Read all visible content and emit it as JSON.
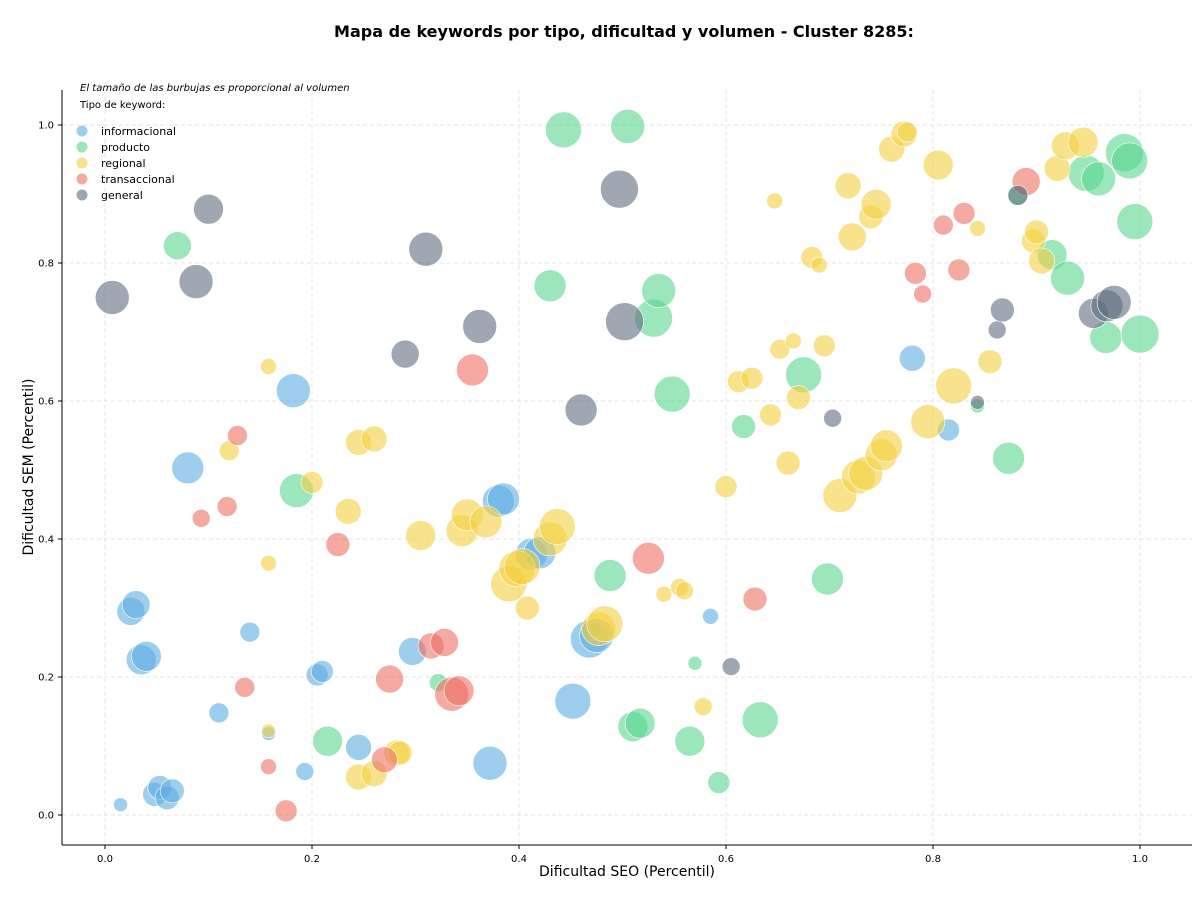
{
  "chart_data": {
    "type": "scatter",
    "title": "Mapa de keywords por tipo, dificultad y volumen - Cluster 8285:",
    "xlabel": "Dificultad SEO (Percentil)",
    "ylabel": "Dificultad SEM (Percentil)",
    "note": "El tamaño de las burbujas es proporcional al volumen",
    "legend_title": "Tipo de keyword:",
    "legend_position": "top-left",
    "grid": true,
    "xlim": [
      -0.04,
      1.05
    ],
    "ylim": [
      -0.045,
      1.05
    ],
    "xticks": [
      "0.0",
      "0.2",
      "0.4",
      "0.6",
      "0.8",
      "1.0"
    ],
    "yticks": [
      "0.0",
      "0.2",
      "0.4",
      "0.6",
      "0.8",
      "1.0"
    ],
    "series": [
      {
        "name": "informacional",
        "color": "#5DADE2",
        "points": [
          {
            "x": 0.015,
            "y": 0.015,
            "r": 7
          },
          {
            "x": 0.025,
            "y": 0.295,
            "r": 14
          },
          {
            "x": 0.03,
            "y": 0.305,
            "r": 14
          },
          {
            "x": 0.035,
            "y": 0.225,
            "r": 15
          },
          {
            "x": 0.04,
            "y": 0.23,
            "r": 15
          },
          {
            "x": 0.048,
            "y": 0.03,
            "r": 12
          },
          {
            "x": 0.053,
            "y": 0.04,
            "r": 12
          },
          {
            "x": 0.06,
            "y": 0.025,
            "r": 12
          },
          {
            "x": 0.065,
            "y": 0.035,
            "r": 12
          },
          {
            "x": 0.08,
            "y": 0.503,
            "r": 16
          },
          {
            "x": 0.11,
            "y": 0.148,
            "r": 10
          },
          {
            "x": 0.14,
            "y": 0.265,
            "r": 10
          },
          {
            "x": 0.158,
            "y": 0.118,
            "r": 7
          },
          {
            "x": 0.182,
            "y": 0.615,
            "r": 17
          },
          {
            "x": 0.193,
            "y": 0.063,
            "r": 9
          },
          {
            "x": 0.205,
            "y": 0.203,
            "r": 11
          },
          {
            "x": 0.21,
            "y": 0.208,
            "r": 11
          },
          {
            "x": 0.245,
            "y": 0.098,
            "r": 13
          },
          {
            "x": 0.297,
            "y": 0.237,
            "r": 14
          },
          {
            "x": 0.372,
            "y": 0.075,
            "r": 17
          },
          {
            "x": 0.38,
            "y": 0.455,
            "r": 16
          },
          {
            "x": 0.385,
            "y": 0.458,
            "r": 16
          },
          {
            "x": 0.412,
            "y": 0.378,
            "r": 16
          },
          {
            "x": 0.42,
            "y": 0.38,
            "r": 16
          },
          {
            "x": 0.452,
            "y": 0.165,
            "r": 18
          },
          {
            "x": 0.468,
            "y": 0.255,
            "r": 19
          },
          {
            "x": 0.475,
            "y": 0.26,
            "r": 17
          },
          {
            "x": 0.585,
            "y": 0.288,
            "r": 8
          },
          {
            "x": 0.78,
            "y": 0.662,
            "r": 13
          },
          {
            "x": 0.815,
            "y": 0.558,
            "r": 11
          }
        ]
      },
      {
        "name": "producto",
        "color": "#58D68D",
        "points": [
          {
            "x": 0.07,
            "y": 0.825,
            "r": 14
          },
          {
            "x": 0.185,
            "y": 0.47,
            "r": 17
          },
          {
            "x": 0.215,
            "y": 0.107,
            "r": 15
          },
          {
            "x": 0.322,
            "y": 0.192,
            "r": 9
          },
          {
            "x": 0.43,
            "y": 0.767,
            "r": 16
          },
          {
            "x": 0.443,
            "y": 0.993,
            "r": 18
          },
          {
            "x": 0.488,
            "y": 0.347,
            "r": 16
          },
          {
            "x": 0.505,
            "y": 0.998,
            "r": 17
          },
          {
            "x": 0.51,
            "y": 0.128,
            "r": 15
          },
          {
            "x": 0.517,
            "y": 0.133,
            "r": 15
          },
          {
            "x": 0.53,
            "y": 0.72,
            "r": 19
          },
          {
            "x": 0.535,
            "y": 0.76,
            "r": 17
          },
          {
            "x": 0.548,
            "y": 0.61,
            "r": 18
          },
          {
            "x": 0.565,
            "y": 0.107,
            "r": 15
          },
          {
            "x": 0.57,
            "y": 0.22,
            "r": 7
          },
          {
            "x": 0.593,
            "y": 0.047,
            "r": 11
          },
          {
            "x": 0.617,
            "y": 0.563,
            "r": 12
          },
          {
            "x": 0.633,
            "y": 0.138,
            "r": 18
          },
          {
            "x": 0.675,
            "y": 0.638,
            "r": 18
          },
          {
            "x": 0.698,
            "y": 0.342,
            "r": 16
          },
          {
            "x": 0.873,
            "y": 0.517,
            "r": 16
          },
          {
            "x": 0.882,
            "y": 0.898,
            "r": 10
          },
          {
            "x": 0.915,
            "y": 0.812,
            "r": 15
          },
          {
            "x": 0.93,
            "y": 0.778,
            "r": 17
          },
          {
            "x": 0.948,
            "y": 0.93,
            "r": 18
          },
          {
            "x": 0.96,
            "y": 0.922,
            "r": 17
          },
          {
            "x": 0.967,
            "y": 0.692,
            "r": 16
          },
          {
            "x": 0.985,
            "y": 0.96,
            "r": 19
          },
          {
            "x": 0.99,
            "y": 0.948,
            "r": 18
          },
          {
            "x": 0.995,
            "y": 0.86,
            "r": 18
          },
          {
            "x": 1.0,
            "y": 0.697,
            "r": 19
          },
          {
            "x": 0.843,
            "y": 0.593,
            "r": 7
          }
        ]
      },
      {
        "name": "regional",
        "color": "#F4D03F",
        "points": [
          {
            "x": 0.12,
            "y": 0.528,
            "r": 10
          },
          {
            "x": 0.158,
            "y": 0.65,
            "r": 8
          },
          {
            "x": 0.158,
            "y": 0.365,
            "r": 8
          },
          {
            "x": 0.158,
            "y": 0.122,
            "r": 7
          },
          {
            "x": 0.2,
            "y": 0.482,
            "r": 11
          },
          {
            "x": 0.235,
            "y": 0.44,
            "r": 13
          },
          {
            "x": 0.245,
            "y": 0.055,
            "r": 13
          },
          {
            "x": 0.245,
            "y": 0.54,
            "r": 13
          },
          {
            "x": 0.26,
            "y": 0.545,
            "r": 13
          },
          {
            "x": 0.26,
            "y": 0.06,
            "r": 13
          },
          {
            "x": 0.282,
            "y": 0.09,
            "r": 13
          },
          {
            "x": 0.285,
            "y": 0.09,
            "r": 12
          },
          {
            "x": 0.305,
            "y": 0.405,
            "r": 15
          },
          {
            "x": 0.345,
            "y": 0.412,
            "r": 16
          },
          {
            "x": 0.35,
            "y": 0.435,
            "r": 16
          },
          {
            "x": 0.368,
            "y": 0.425,
            "r": 16
          },
          {
            "x": 0.39,
            "y": 0.335,
            "r": 18
          },
          {
            "x": 0.398,
            "y": 0.357,
            "r": 18
          },
          {
            "x": 0.403,
            "y": 0.36,
            "r": 18
          },
          {
            "x": 0.408,
            "y": 0.3,
            "r": 12
          },
          {
            "x": 0.43,
            "y": 0.4,
            "r": 17
          },
          {
            "x": 0.437,
            "y": 0.418,
            "r": 18
          },
          {
            "x": 0.477,
            "y": 0.27,
            "r": 17
          },
          {
            "x": 0.483,
            "y": 0.277,
            "r": 18
          },
          {
            "x": 0.54,
            "y": 0.32,
            "r": 8
          },
          {
            "x": 0.555,
            "y": 0.33,
            "r": 9
          },
          {
            "x": 0.56,
            "y": 0.325,
            "r": 9
          },
          {
            "x": 0.578,
            "y": 0.157,
            "r": 9
          },
          {
            "x": 0.6,
            "y": 0.476,
            "r": 11
          },
          {
            "x": 0.612,
            "y": 0.628,
            "r": 11
          },
          {
            "x": 0.625,
            "y": 0.633,
            "r": 11
          },
          {
            "x": 0.643,
            "y": 0.58,
            "r": 11
          },
          {
            "x": 0.647,
            "y": 0.89,
            "r": 8
          },
          {
            "x": 0.652,
            "y": 0.675,
            "r": 10
          },
          {
            "x": 0.66,
            "y": 0.51,
            "r": 12
          },
          {
            "x": 0.665,
            "y": 0.687,
            "r": 8
          },
          {
            "x": 0.67,
            "y": 0.605,
            "r": 12
          },
          {
            "x": 0.683,
            "y": 0.808,
            "r": 11
          },
          {
            "x": 0.69,
            "y": 0.797,
            "r": 8
          },
          {
            "x": 0.695,
            "y": 0.68,
            "r": 11
          },
          {
            "x": 0.71,
            "y": 0.463,
            "r": 17
          },
          {
            "x": 0.718,
            "y": 0.912,
            "r": 13
          },
          {
            "x": 0.722,
            "y": 0.838,
            "r": 14
          },
          {
            "x": 0.728,
            "y": 0.49,
            "r": 17
          },
          {
            "x": 0.735,
            "y": 0.495,
            "r": 17
          },
          {
            "x": 0.74,
            "y": 0.867,
            "r": 12
          },
          {
            "x": 0.745,
            "y": 0.885,
            "r": 15
          },
          {
            "x": 0.75,
            "y": 0.522,
            "r": 16
          },
          {
            "x": 0.755,
            "y": 0.535,
            "r": 16
          },
          {
            "x": 0.76,
            "y": 0.965,
            "r": 13
          },
          {
            "x": 0.772,
            "y": 0.987,
            "r": 13
          },
          {
            "x": 0.775,
            "y": 0.99,
            "r": 10
          },
          {
            "x": 0.795,
            "y": 0.57,
            "r": 17
          },
          {
            "x": 0.805,
            "y": 0.942,
            "r": 15
          },
          {
            "x": 0.82,
            "y": 0.622,
            "r": 18
          },
          {
            "x": 0.843,
            "y": 0.85,
            "r": 8
          },
          {
            "x": 0.855,
            "y": 0.657,
            "r": 12
          },
          {
            "x": 0.897,
            "y": 0.832,
            "r": 12
          },
          {
            "x": 0.9,
            "y": 0.845,
            "r": 12
          },
          {
            "x": 0.905,
            "y": 0.803,
            "r": 13
          },
          {
            "x": 0.92,
            "y": 0.937,
            "r": 13
          },
          {
            "x": 0.928,
            "y": 0.97,
            "r": 14
          },
          {
            "x": 0.945,
            "y": 0.975,
            "r": 15
          }
        ]
      },
      {
        "name": "transaccional",
        "color": "#EC7063",
        "points": [
          {
            "x": 0.093,
            "y": 0.43,
            "r": 9
          },
          {
            "x": 0.118,
            "y": 0.447,
            "r": 10
          },
          {
            "x": 0.128,
            "y": 0.55,
            "r": 10
          },
          {
            "x": 0.135,
            "y": 0.185,
            "r": 10
          },
          {
            "x": 0.158,
            "y": 0.07,
            "r": 8
          },
          {
            "x": 0.175,
            "y": 0.006,
            "r": 11
          },
          {
            "x": 0.225,
            "y": 0.392,
            "r": 12
          },
          {
            "x": 0.27,
            "y": 0.08,
            "r": 13
          },
          {
            "x": 0.275,
            "y": 0.197,
            "r": 14
          },
          {
            "x": 0.315,
            "y": 0.245,
            "r": 13
          },
          {
            "x": 0.328,
            "y": 0.25,
            "r": 14
          },
          {
            "x": 0.335,
            "y": 0.175,
            "r": 17
          },
          {
            "x": 0.342,
            "y": 0.18,
            "r": 15
          },
          {
            "x": 0.355,
            "y": 0.645,
            "r": 16
          },
          {
            "x": 0.525,
            "y": 0.372,
            "r": 16
          },
          {
            "x": 0.628,
            "y": 0.313,
            "r": 12
          },
          {
            "x": 0.783,
            "y": 0.785,
            "r": 11
          },
          {
            "x": 0.79,
            "y": 0.755,
            "r": 9
          },
          {
            "x": 0.81,
            "y": 0.855,
            "r": 10
          },
          {
            "x": 0.825,
            "y": 0.79,
            "r": 11
          },
          {
            "x": 0.83,
            "y": 0.872,
            "r": 11
          },
          {
            "x": 0.89,
            "y": 0.918,
            "r": 14
          }
        ]
      },
      {
        "name": "general",
        "color": "#5D6D7E",
        "points": [
          {
            "x": 0.007,
            "y": 0.75,
            "r": 17
          },
          {
            "x": 0.088,
            "y": 0.773,
            "r": 17
          },
          {
            "x": 0.1,
            "y": 0.878,
            "r": 15
          },
          {
            "x": 0.29,
            "y": 0.668,
            "r": 14
          },
          {
            "x": 0.31,
            "y": 0.82,
            "r": 17
          },
          {
            "x": 0.362,
            "y": 0.708,
            "r": 17
          },
          {
            "x": 0.46,
            "y": 0.587,
            "r": 16
          },
          {
            "x": 0.497,
            "y": 0.907,
            "r": 19
          },
          {
            "x": 0.502,
            "y": 0.715,
            "r": 19
          },
          {
            "x": 0.605,
            "y": 0.215,
            "r": 9
          },
          {
            "x": 0.703,
            "y": 0.575,
            "r": 9
          },
          {
            "x": 0.843,
            "y": 0.598,
            "r": 7
          },
          {
            "x": 0.862,
            "y": 0.703,
            "r": 9
          },
          {
            "x": 0.867,
            "y": 0.732,
            "r": 12
          },
          {
            "x": 0.882,
            "y": 0.898,
            "r": 10
          },
          {
            "x": 0.955,
            "y": 0.727,
            "r": 15
          },
          {
            "x": 0.968,
            "y": 0.738,
            "r": 16
          },
          {
            "x": 0.975,
            "y": 0.743,
            "r": 17
          }
        ]
      }
    ]
  }
}
